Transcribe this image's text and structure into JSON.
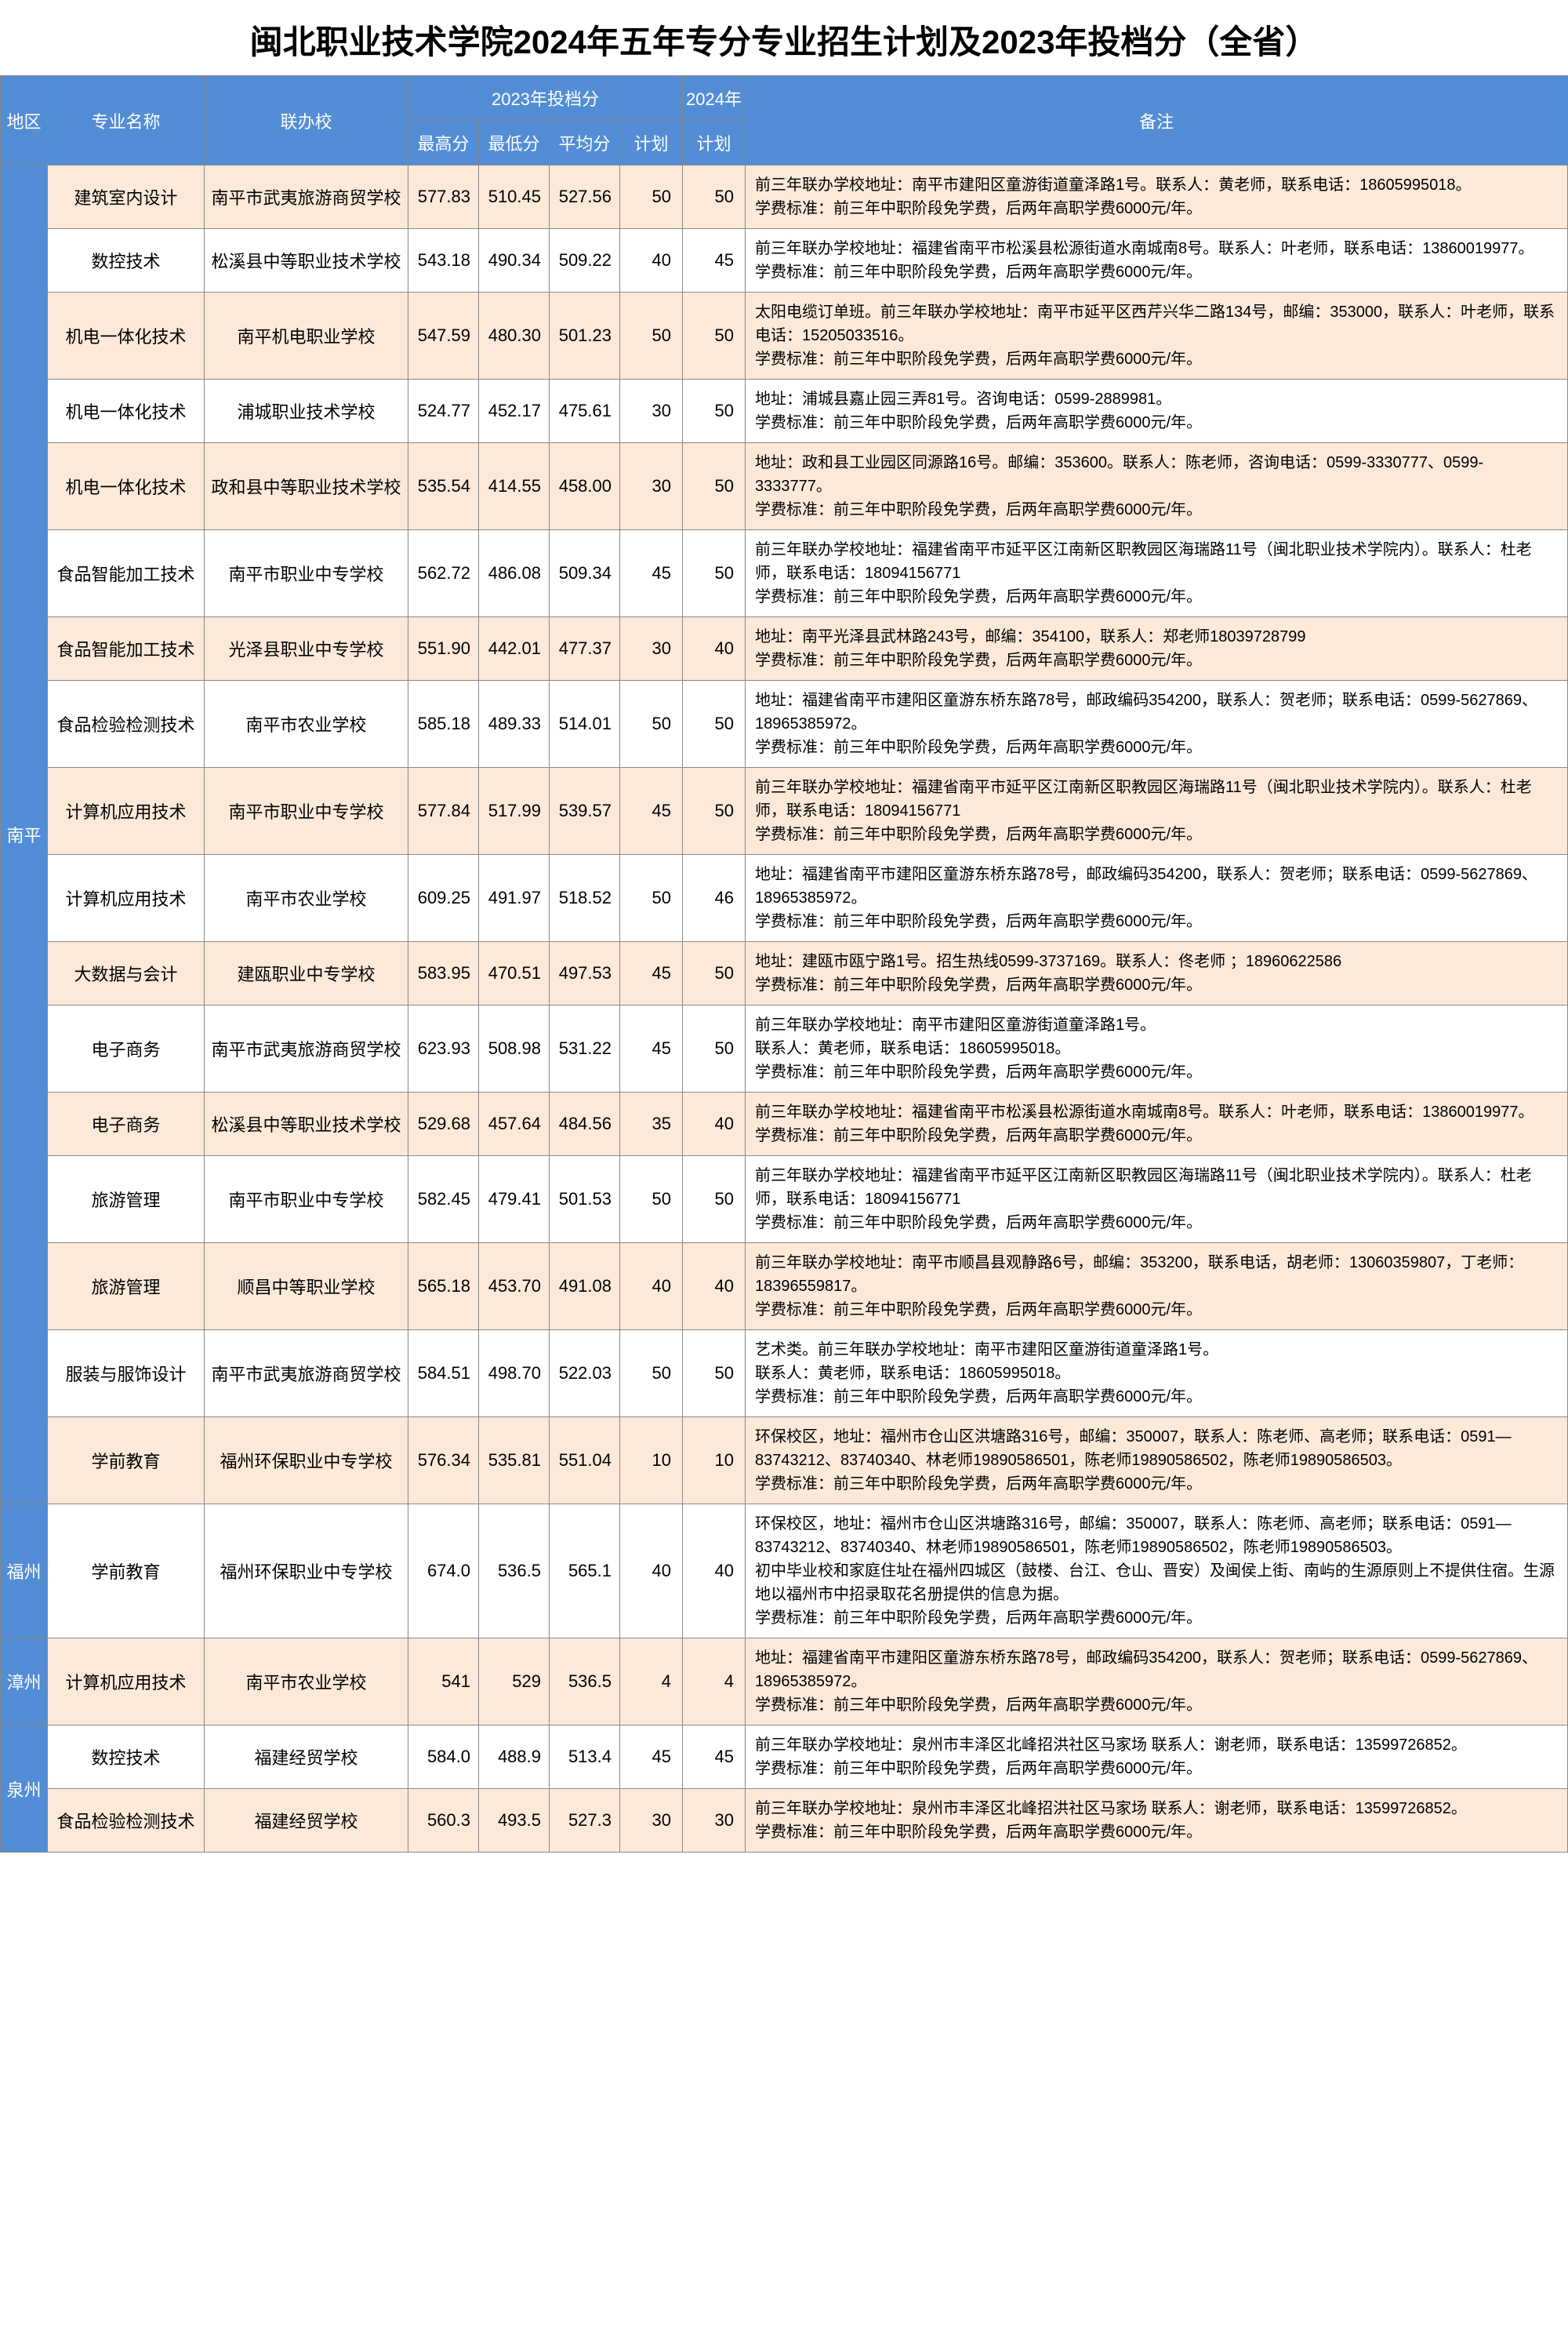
{
  "title": "闽北职业技术学院2024年五年专分专业招生计划及2023年投档分（全省）",
  "headers": {
    "region": "地区",
    "major": "专业名称",
    "school": "联办校",
    "score_group": "2023年投档分",
    "year2024": "2024年",
    "remark": "备注",
    "max": "最高分",
    "min": "最低分",
    "avg": "平均分",
    "plan23": "计划",
    "plan24": "计划"
  },
  "colors": {
    "header_bg": "#538dd5",
    "header_fg": "#ffffff",
    "row_odd_bg": "#fde9d9",
    "row_even_bg": "#ffffff",
    "border": "#888888"
  },
  "regions": [
    {
      "name": "南平",
      "rows": [
        {
          "major": "建筑室内设计",
          "school": "南平市武夷旅游商贸学校",
          "max": "577.83",
          "min": "510.45",
          "avg": "527.56",
          "plan23": "50",
          "plan24": "50",
          "remark": "前三年联办学校地址：南平市建阳区童游街道童泽路1号。联系人：黄老师，联系电话：18605995018。\n学费标准：前三年中职阶段免学费，后两年高职学费6000元/年。"
        },
        {
          "major": "数控技术",
          "school": "松溪县中等职业技术学校",
          "max": "543.18",
          "min": "490.34",
          "avg": "509.22",
          "plan23": "40",
          "plan24": "45",
          "remark": "前三年联办学校地址：福建省南平市松溪县松源街道水南城南8号。联系人：叶老师，联系电话：13860019977。\n学费标准：前三年中职阶段免学费，后两年高职学费6000元/年。"
        },
        {
          "major": "机电一体化技术",
          "school": "南平机电职业学校",
          "max": "547.59",
          "min": "480.30",
          "avg": "501.23",
          "plan23": "50",
          "plan24": "50",
          "remark": "太阳电缆订单班。前三年联办学校地址：南平市延平区西芹兴华二路134号，邮编：353000，联系人：叶老师，联系电话：15205033516。\n学费标准：前三年中职阶段免学费，后两年高职学费6000元/年。"
        },
        {
          "major": "机电一体化技术",
          "school": "浦城职业技术学校",
          "max": "524.77",
          "min": "452.17",
          "avg": "475.61",
          "plan23": "30",
          "plan24": "50",
          "remark": "地址：浦城县嘉止园三弄81号。咨询电话：0599-2889981。\n学费标准：前三年中职阶段免学费，后两年高职学费6000元/年。"
        },
        {
          "major": "机电一体化技术",
          "school": "政和县中等职业技术学校",
          "max": "535.54",
          "min": "414.55",
          "avg": "458.00",
          "plan23": "30",
          "plan24": "50",
          "remark": "地址：政和县工业园区同源路16号。邮编：353600。联系人：陈老师，咨询电话：0599-3330777、0599-3333777。\n学费标准：前三年中职阶段免学费，后两年高职学费6000元/年。"
        },
        {
          "major": "食品智能加工技术",
          "school": "南平市职业中专学校",
          "max": "562.72",
          "min": "486.08",
          "avg": "509.34",
          "plan23": "45",
          "plan24": "50",
          "remark": "前三年联办学校地址：福建省南平市延平区江南新区职教园区海瑞路11号（闽北职业技术学院内）。联系人：杜老师，联系电话：18094156771\n学费标准：前三年中职阶段免学费，后两年高职学费6000元/年。"
        },
        {
          "major": "食品智能加工技术",
          "school": "光泽县职业中专学校",
          "max": "551.90",
          "min": "442.01",
          "avg": "477.37",
          "plan23": "30",
          "plan24": "40",
          "remark": "地址：南平光泽县武林路243号，邮编：354100，联系人：郑老师18039728799\n学费标准：前三年中职阶段免学费，后两年高职学费6000元/年。"
        },
        {
          "major": "食品检验检测技术",
          "school": "南平市农业学校",
          "max": "585.18",
          "min": "489.33",
          "avg": "514.01",
          "plan23": "50",
          "plan24": "50",
          "remark": "地址：福建省南平市建阳区童游东桥东路78号，邮政编码354200，联系人：贺老师；联系电话：0599-5627869、18965385972。\n学费标准：前三年中职阶段免学费，后两年高职学费6000元/年。"
        },
        {
          "major": "计算机应用技术",
          "school": "南平市职业中专学校",
          "max": "577.84",
          "min": "517.99",
          "avg": "539.57",
          "plan23": "45",
          "plan24": "50",
          "remark": "前三年联办学校地址：福建省南平市延平区江南新区职教园区海瑞路11号（闽北职业技术学院内）。联系人：杜老师，联系电话：18094156771\n学费标准：前三年中职阶段免学费，后两年高职学费6000元/年。"
        },
        {
          "major": "计算机应用技术",
          "school": "南平市农业学校",
          "max": "609.25",
          "min": "491.97",
          "avg": "518.52",
          "plan23": "50",
          "plan24": "46",
          "remark": "地址：福建省南平市建阳区童游东桥东路78号，邮政编码354200，联系人：贺老师；联系电话：0599-5627869、18965385972。\n学费标准：前三年中职阶段免学费，后两年高职学费6000元/年。"
        },
        {
          "major": "大数据与会计",
          "school": "建瓯职业中专学校",
          "max": "583.95",
          "min": "470.51",
          "avg": "497.53",
          "plan23": "45",
          "plan24": "50",
          "remark": "地址：建瓯市瓯宁路1号。招生热线0599-3737169。联系人：佟老师 ；18960622586\n学费标准：前三年中职阶段免学费，后两年高职学费6000元/年。"
        },
        {
          "major": "电子商务",
          "school": "南平市武夷旅游商贸学校",
          "max": "623.93",
          "min": "508.98",
          "avg": "531.22",
          "plan23": "45",
          "plan24": "50",
          "remark": "前三年联办学校地址：南平市建阳区童游街道童泽路1号。\n联系人：黄老师，联系电话：18605995018。\n学费标准：前三年中职阶段免学费，后两年高职学费6000元/年。"
        },
        {
          "major": "电子商务",
          "school": "松溪县中等职业技术学校",
          "max": "529.68",
          "min": "457.64",
          "avg": "484.56",
          "plan23": "35",
          "plan24": "40",
          "remark": "前三年联办学校地址：福建省南平市松溪县松源街道水南城南8号。联系人：叶老师，联系电话：13860019977。\n学费标准：前三年中职阶段免学费，后两年高职学费6000元/年。"
        },
        {
          "major": "旅游管理",
          "school": "南平市职业中专学校",
          "max": "582.45",
          "min": "479.41",
          "avg": "501.53",
          "plan23": "50",
          "plan24": "50",
          "remark": "前三年联办学校地址：福建省南平市延平区江南新区职教园区海瑞路11号（闽北职业技术学院内）。联系人：杜老师，联系电话：18094156771\n学费标准：前三年中职阶段免学费，后两年高职学费6000元/年。"
        },
        {
          "major": "旅游管理",
          "school": "顺昌中等职业学校",
          "max": "565.18",
          "min": "453.70",
          "avg": "491.08",
          "plan23": "40",
          "plan24": "40",
          "remark": "前三年联办学校地址：南平市顺昌县观静路6号，邮编：353200，联系电话，胡老师：13060359807，丁老师：18396559817。\n学费标准：前三年中职阶段免学费，后两年高职学费6000元/年。"
        },
        {
          "major": "服装与服饰设计",
          "school": "南平市武夷旅游商贸学校",
          "max": "584.51",
          "min": "498.70",
          "avg": "522.03",
          "plan23": "50",
          "plan24": "50",
          "remark": "艺术类。前三年联办学校地址：南平市建阳区童游街道童泽路1号。\n联系人：黄老师，联系电话：18605995018。\n学费标准：前三年中职阶段免学费，后两年高职学费6000元/年。"
        },
        {
          "major": "学前教育",
          "school": "福州环保职业中专学校",
          "max": "576.34",
          "min": "535.81",
          "avg": "551.04",
          "plan23": "10",
          "plan24": "10",
          "remark": "环保校区，地址：福州市仓山区洪塘路316号，邮编：350007，联系人：陈老师、高老师；联系电话：0591—83743212、83740340、林老师19890586501，陈老师19890586502，陈老师19890586503。\n学费标准：前三年中职阶段免学费，后两年高职学费6000元/年。"
        }
      ]
    },
    {
      "name": "福州",
      "rows": [
        {
          "major": "学前教育",
          "school": "福州环保职业中专学校",
          "max": "674.0",
          "min": "536.5",
          "avg": "565.1",
          "plan23": "40",
          "plan24": "40",
          "remark": "环保校区，地址：福州市仓山区洪塘路316号，邮编：350007，联系人：陈老师、高老师；联系电话：0591—83743212、83740340、林老师19890586501，陈老师19890586502，陈老师19890586503。\n初中毕业校和家庭住址在福州四城区（鼓楼、台江、仓山、晋安）及闽侯上街、南屿的生源原则上不提供住宿。生源地以福州市中招录取花名册提供的信息为据。\n学费标准：前三年中职阶段免学费，后两年高职学费6000元/年。"
        }
      ]
    },
    {
      "name": "漳州",
      "rows": [
        {
          "major": "计算机应用技术",
          "school": "南平市农业学校",
          "max": "541",
          "min": "529",
          "avg": "536.5",
          "plan23": "4",
          "plan24": "4",
          "remark": "地址：福建省南平市建阳区童游东桥东路78号，邮政编码354200，联系人：贺老师；联系电话：0599-5627869、18965385972。\n学费标准：前三年中职阶段免学费，后两年高职学费6000元/年。"
        }
      ]
    },
    {
      "name": "泉州",
      "rows": [
        {
          "major": "数控技术",
          "school": "福建经贸学校",
          "max": "584.0",
          "min": "488.9",
          "avg": "513.4",
          "plan23": "45",
          "plan24": "45",
          "remark": "前三年联办学校地址：泉州市丰泽区北峰招洪社区马家场  联系人：谢老师，联系电话：13599726852。\n学费标准：前三年中职阶段免学费，后两年高职学费6000元/年。"
        },
        {
          "major": "食品检验检测技术",
          "school": "福建经贸学校",
          "max": "560.3",
          "min": "493.5",
          "avg": "527.3",
          "plan23": "30",
          "plan24": "30",
          "remark": "前三年联办学校地址：泉州市丰泽区北峰招洪社区马家场  联系人：谢老师，联系电话：13599726852。\n学费标准：前三年中职阶段免学费，后两年高职学费6000元/年。"
        }
      ]
    }
  ]
}
